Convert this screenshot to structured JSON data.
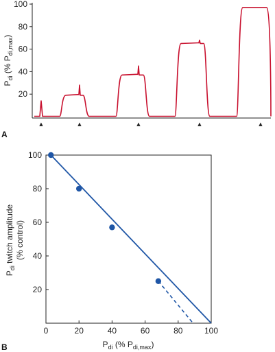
{
  "chart_data": [
    {
      "panel": "A",
      "type": "line",
      "ylabel": {
        "base": "P",
        "sub": "di",
        "rest": " (% P",
        "sub2": "di,max",
        "end": ")"
      },
      "ylim": [
        0,
        100
      ],
      "yticks": [
        "20",
        "40",
        "60",
        "80",
        "100"
      ],
      "ytick_values": [
        20,
        40,
        60,
        80,
        100
      ],
      "grid": false,
      "color": "#c8102e",
      "plateaus": [
        {
          "level": 0,
          "twitch_peak": 14
        },
        {
          "level": 19,
          "twitch_peak": 28
        },
        {
          "level": 37,
          "twitch_peak": 45
        },
        {
          "level": 65,
          "twitch_peak": 68
        },
        {
          "level": 97,
          "twitch_peak": 97
        }
      ],
      "stimulus_markers": 5,
      "marker_glyph": "▲"
    },
    {
      "panel": "B",
      "type": "scatter",
      "xlabel": {
        "base": "P",
        "sub": "di",
        "rest": " (% P",
        "sub2": "di,max",
        "end": ")"
      },
      "ylabel_line1": {
        "base": "P",
        "sub": "di",
        "rest": " twitch amplitude"
      },
      "ylabel_line2": "(% control)",
      "xlim": [
        0,
        100
      ],
      "ylim": [
        0,
        100
      ],
      "xticks": [
        "0",
        "20",
        "40",
        "60",
        "80",
        "100"
      ],
      "xtick_values": [
        0,
        20,
        40,
        60,
        80,
        100
      ],
      "yticks": [
        "20",
        "40",
        "60",
        "80",
        "100"
      ],
      "ytick_values": [
        20,
        40,
        60,
        80,
        100
      ],
      "grid": false,
      "color": "#1f56a6",
      "points": [
        {
          "x": 3,
          "y": 100
        },
        {
          "x": 20,
          "y": 80
        },
        {
          "x": 40,
          "y": 57
        },
        {
          "x": 68,
          "y": 25
        }
      ],
      "solid_fit": [
        {
          "x": 3,
          "y": 100
        },
        {
          "x": 100,
          "y": 0
        }
      ],
      "dashed_extrapolation": [
        {
          "x": 68,
          "y": 25
        },
        {
          "x": 89,
          "y": 0
        }
      ]
    }
  ]
}
